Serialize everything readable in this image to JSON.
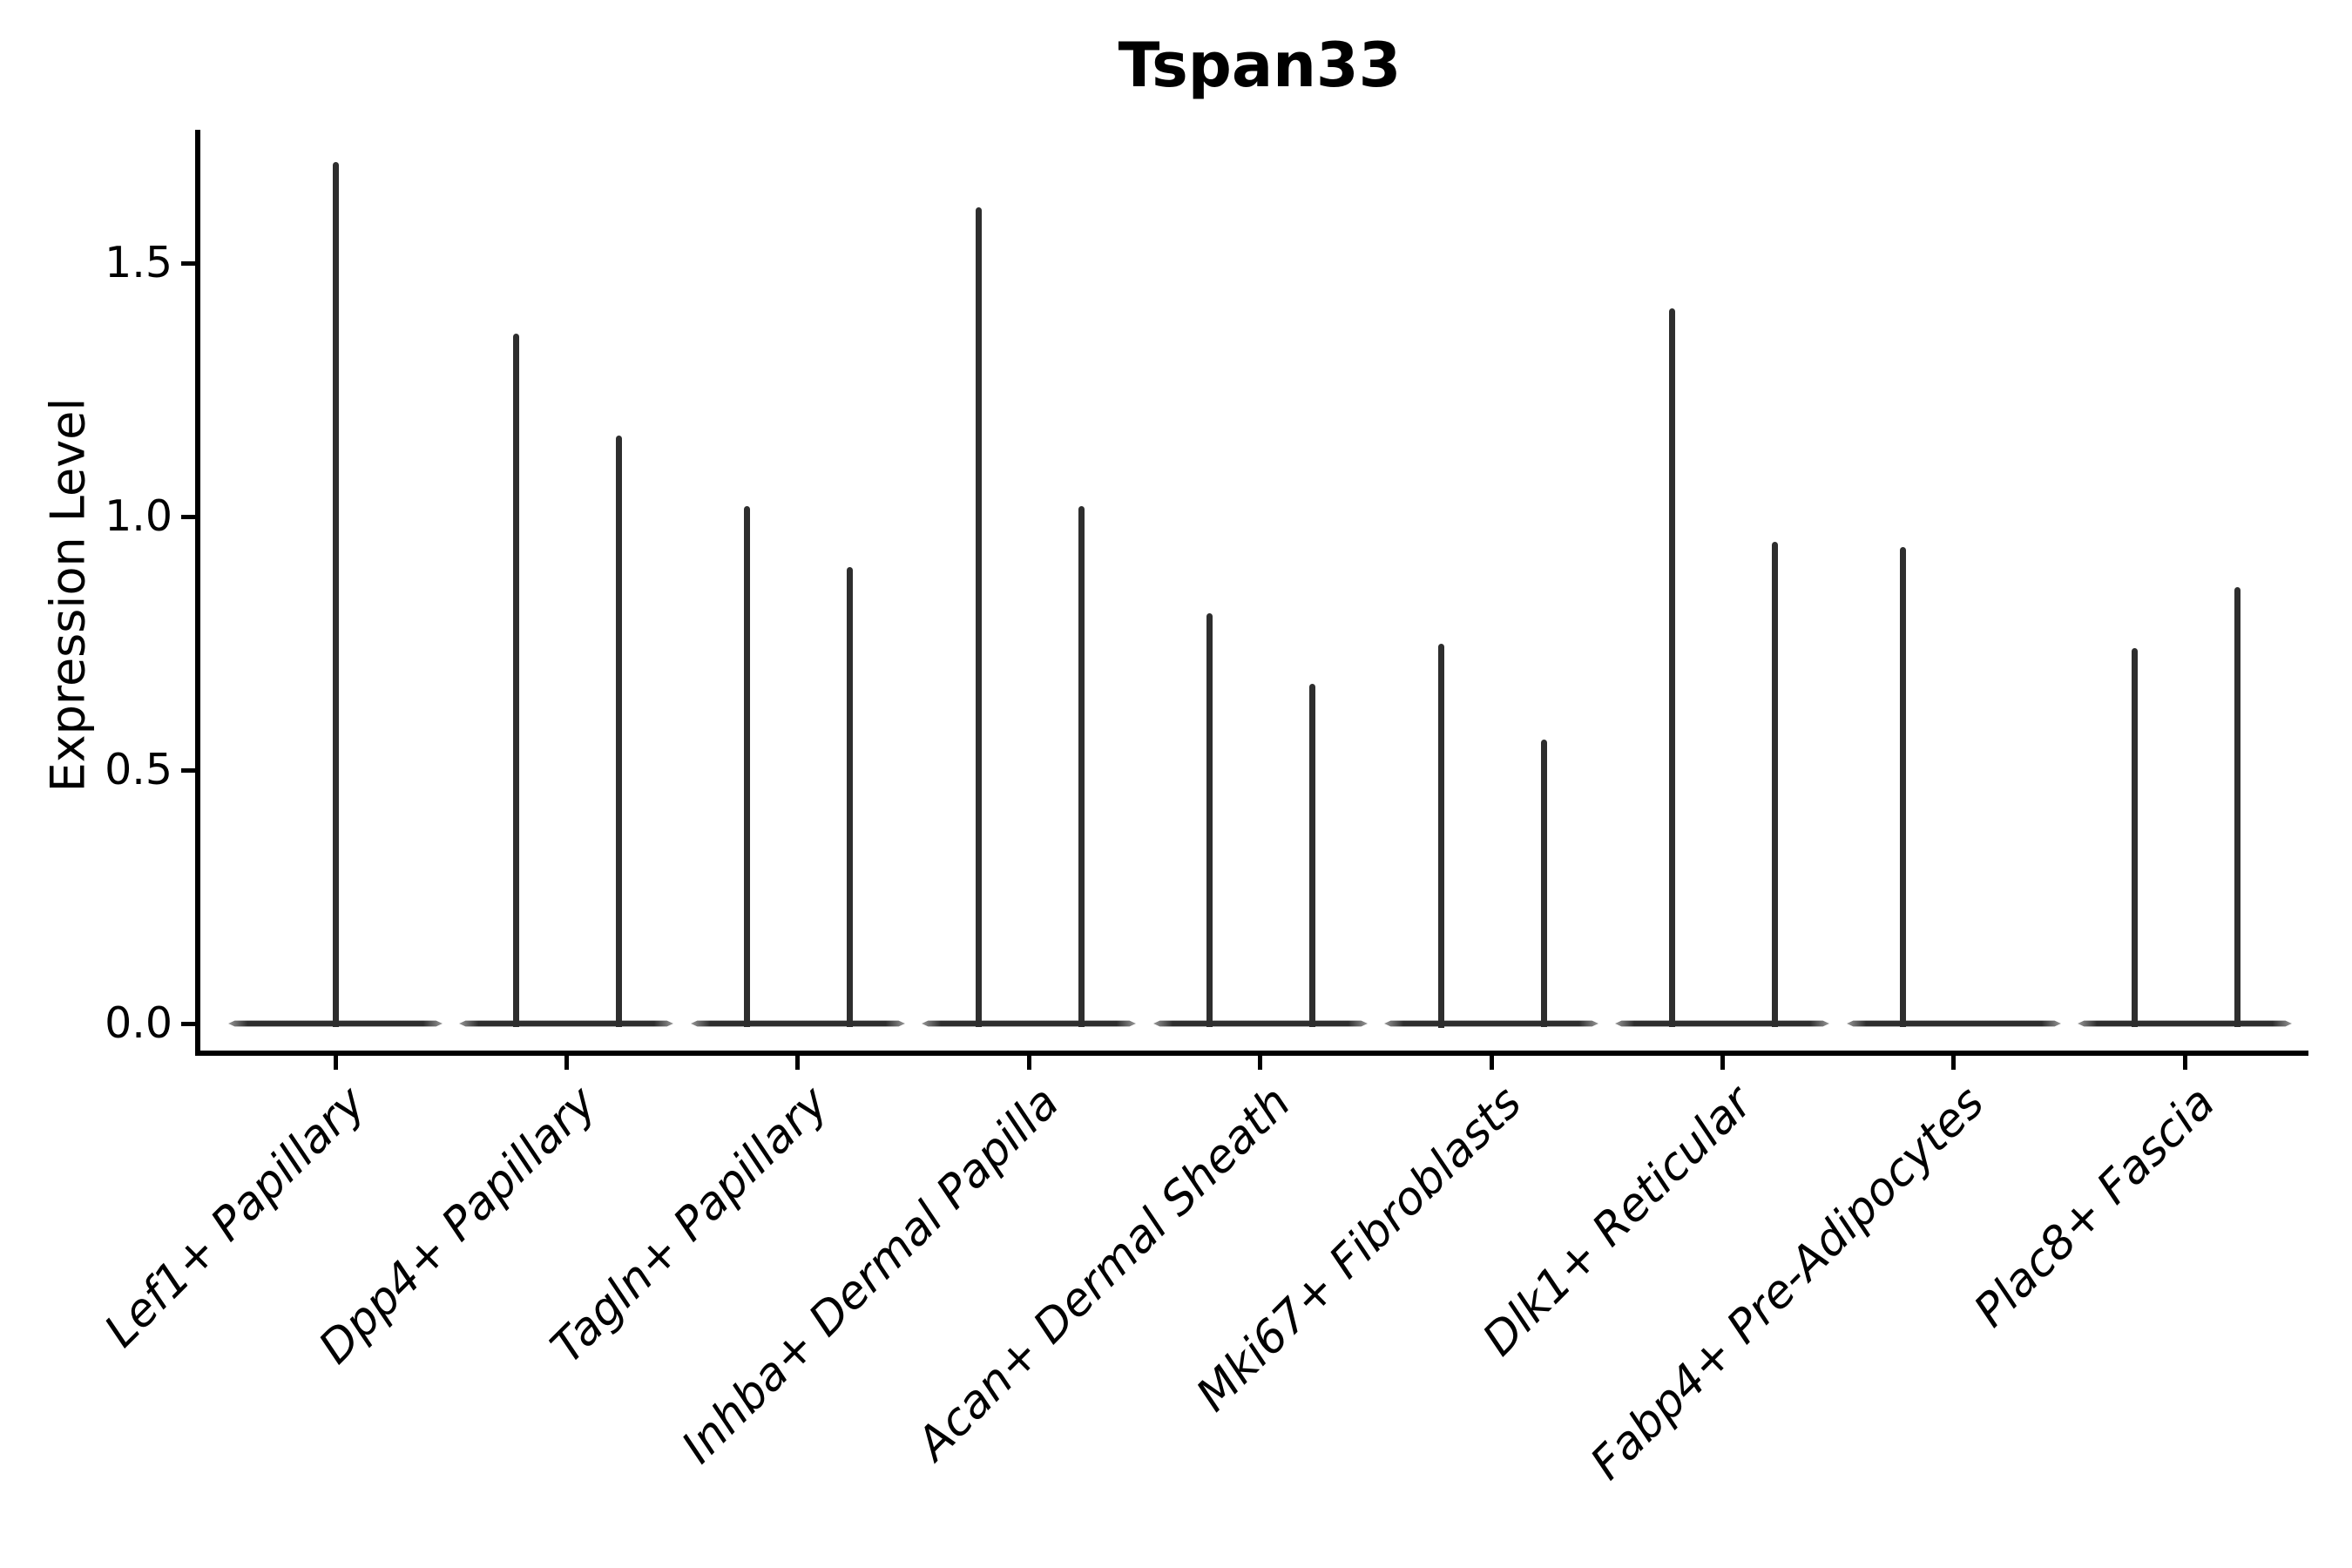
{
  "page": {
    "background": "#ffffff"
  },
  "colors": {
    "ink": "#000000",
    "violin": "#2e2e2e"
  },
  "chart_data": {
    "type": "violin",
    "title": "Tspan33",
    "xlabel": "",
    "ylabel": "Expression Level",
    "ytick_labels": [
      "0.0",
      "0.5",
      "1.0",
      "1.5"
    ],
    "ytick_values": [
      0,
      0.5,
      1.0,
      1.5
    ],
    "ylim": [
      -0.06,
      1.77
    ],
    "grid": false,
    "legend_position": "none",
    "density_concentrated_at": 0.0,
    "categories": [
      "Lef1+ Papillary",
      "Dpp4+ Papillary",
      "Tagln+ Papillary",
      "Inhba+ Dermal Papilla",
      "Acan+ Dermal Sheath",
      "Mki67+ Fibroblasts",
      "Dlk1+ Reticular",
      "Fabp4+ Pre-Adipocytes",
      "Plac8+ Fascia"
    ],
    "series": [
      {
        "category": "Lef1+ Papillary",
        "violins": [
          {
            "position": "center",
            "max_expression": 1.7
          }
        ]
      },
      {
        "category": "Dpp4+ Papillary",
        "violins": [
          {
            "position": "left",
            "max_expression": 1.36
          },
          {
            "position": "right",
            "max_expression": 1.16
          }
        ]
      },
      {
        "category": "Tagln+ Papillary",
        "violins": [
          {
            "position": "left",
            "max_expression": 1.02
          },
          {
            "position": "right",
            "max_expression": 0.9
          }
        ]
      },
      {
        "category": "Inhba+ Dermal Papilla",
        "violins": [
          {
            "position": "left",
            "max_expression": 1.61
          },
          {
            "position": "right",
            "max_expression": 1.02
          }
        ]
      },
      {
        "category": "Acan+ Dermal Sheath",
        "violins": [
          {
            "position": "left",
            "max_expression": 0.81
          },
          {
            "position": "right",
            "max_expression": 0.67
          }
        ]
      },
      {
        "category": "Mki67+ Fibroblasts",
        "violins": [
          {
            "position": "left",
            "max_expression": 0.75
          },
          {
            "position": "right",
            "max_expression": 0.56
          }
        ]
      },
      {
        "category": "Dlk1+ Reticular",
        "violins": [
          {
            "position": "left",
            "max_expression": 1.41
          },
          {
            "position": "right",
            "max_expression": 0.95
          }
        ]
      },
      {
        "category": "Fabp4+ Pre-Adipocytes",
        "violins": [
          {
            "position": "left",
            "max_expression": 0.94
          }
        ]
      },
      {
        "category": "Plac8+ Fascia",
        "violins": [
          {
            "position": "left",
            "max_expression": 0.74
          },
          {
            "position": "right",
            "max_expression": 0.86
          }
        ]
      }
    ]
  }
}
